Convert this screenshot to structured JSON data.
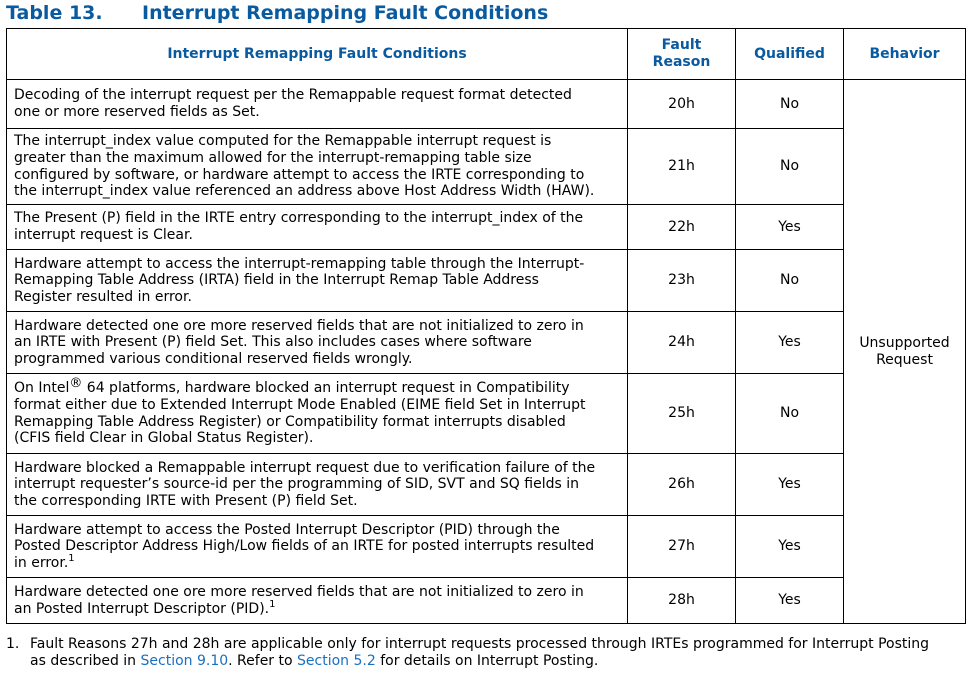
{
  "caption": {
    "number": "Table 13.",
    "title": "Interrupt Remapping Fault Conditions"
  },
  "headers": {
    "conditions": "Interrupt Remapping Fault Conditions",
    "fault_reason_line1": "Fault",
    "fault_reason_line2": "Reason",
    "qualified": "Qualified",
    "behavior": "Behavior"
  },
  "rows": [
    {
      "lines": [
        "Decoding of the interrupt request per the Remappable request format detected",
        "one or more reserved fields as Set."
      ],
      "reason": "20h",
      "qualified": "No"
    },
    {
      "lines": [
        "The interrupt_index value computed for the Remappable interrupt request is",
        "greater than the maximum allowed for the interrupt-remapping table size",
        "configured by software, or hardware attempt to access the IRTE corresponding to",
        "the interrupt_index value referenced an address above Host Address Width (HAW)."
      ],
      "reason": "21h",
      "qualified": "No"
    },
    {
      "lines": [
        "The Present (P) field in the IRTE entry corresponding to the interrupt_index of the",
        "interrupt request is Clear."
      ],
      "reason": "22h",
      "qualified": "Yes"
    },
    {
      "lines": [
        "Hardware attempt to access the interrupt-remapping table through the Interrupt-",
        "Remapping Table Address (IRTA) field in the Interrupt Remap Table Address",
        "Register resulted in error."
      ],
      "reason": "23h",
      "qualified": "No"
    },
    {
      "lines": [
        "Hardware detected one ore more reserved fields that are not initialized to zero in",
        "an IRTE with Present (P) field Set. This also includes cases where software",
        "programmed various conditional reserved fields wrongly."
      ],
      "reason": "24h",
      "qualified": "Yes"
    },
    {
      "lines": [
        "On Intel",
        "format either due to Extended Interrupt Mode Enabled (EIME field Set in Interrupt",
        "Remapping Table Address Register) or Compatibility format interrupts disabled",
        "(CFIS field Clear in Global Status Register)."
      ],
      "reg_mark": "®",
      "line1_rest": " 64 platforms, hardware blocked an interrupt request in Compatibility",
      "reason": "25h",
      "qualified": "No"
    },
    {
      "lines": [
        "Hardware blocked a Remappable interrupt request due to verification failure of the",
        "interrupt requester’s source-id per the programming of SID, SVT and SQ fields in",
        "the corresponding IRTE with Present (P) field Set."
      ],
      "reason": "26h",
      "qualified": "Yes"
    },
    {
      "lines": [
        "Hardware attempt to access the Posted Interrupt Descriptor (PID) through the",
        "Posted Descriptor Address High/Low fields of an IRTE for posted interrupts resulted",
        "in error."
      ],
      "footnote_ref": "1",
      "reason": "27h",
      "qualified": "Yes"
    },
    {
      "lines": [
        "Hardware detected one ore more reserved fields that are not initialized to zero in",
        "an Posted Interrupt Descriptor (PID)."
      ],
      "footnote_ref": "1",
      "reason": "28h",
      "qualified": "Yes"
    }
  ],
  "behavior_line1": "Unsupported",
  "behavior_line2": "Request",
  "footnote": {
    "number": "1.",
    "line1": "Fault Reasons 27h and 28h are applicable only for interrupt requests processed through IRTEs programmed for Interrupt Posting",
    "line2_a": "as described in ",
    "link1": "Section 9.10",
    "line2_b": ". Refer to ",
    "link2": "Section 5.2",
    "line2_c": " for details on Interrupt Posting."
  }
}
